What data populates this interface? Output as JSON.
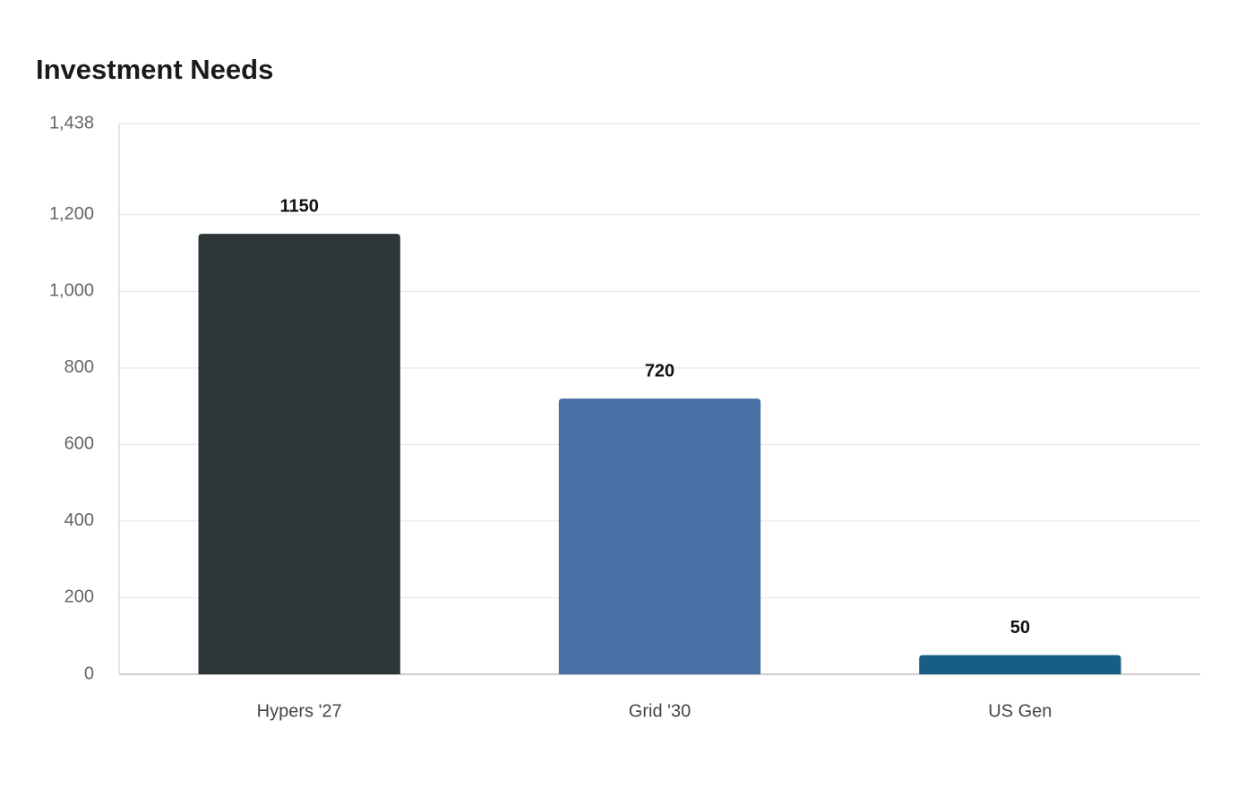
{
  "chart_data": {
    "type": "bar",
    "title": "Investment Needs",
    "categories": [
      "Hypers '27",
      "Grid '30",
      "US Gen"
    ],
    "values": [
      1150,
      720,
      50
    ],
    "colors": [
      "#2e3538",
      "#4a6fa5",
      "#175e86"
    ],
    "ylim": [
      0,
      1438
    ],
    "yticks": [
      0,
      200,
      400,
      600,
      800,
      {
        "value": 1000,
        "label": "1,000"
      },
      {
        "value": 1200,
        "label": "1,200"
      },
      {
        "value": 1438,
        "label": "1,438"
      }
    ],
    "grid": true
  }
}
